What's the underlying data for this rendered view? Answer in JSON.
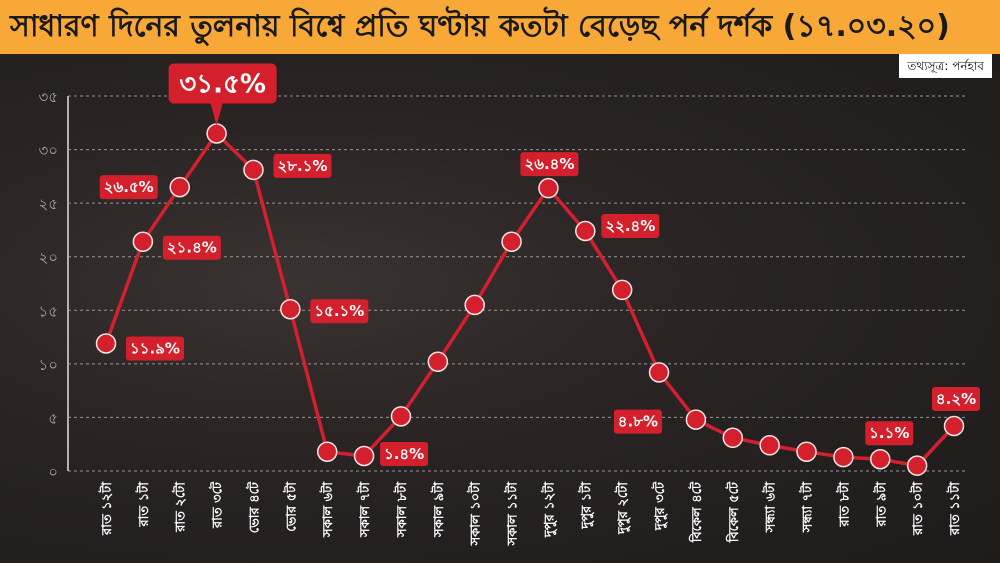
{
  "header": {
    "title": "সাধারণ দিনের তুলনায় বিশ্বে প্রতি ঘণ্টায় কতটা বেড়েছ পর্ন দর্শক (১৭.০৩.২০)",
    "source": "তথ্যসূত্র: পর্নহাব"
  },
  "colors": {
    "title_bg": "#f7a836",
    "line": "#d4202c",
    "label_bg": "#d4202c",
    "background": "#231e1e",
    "grid": "#9a9594"
  },
  "chart_data": {
    "type": "line",
    "title": "সাধারণ দিনের তুলনায় বিশ্বে প্রতি ঘণ্টায় কতটা বেড়েছ পর্ন দর্শক (১৭.০৩.২০)",
    "xlabel": "",
    "ylabel": "",
    "ylim": [
      0,
      35
    ],
    "yticks": [
      0,
      5,
      10,
      15,
      20,
      25,
      30,
      35
    ],
    "ytick_labels": [
      "০",
      "৫",
      "১০",
      "১৫",
      "২০",
      "২৫",
      "৩০",
      "৩৫"
    ],
    "grid": true,
    "legend": null,
    "categories": [
      "রাত ১২টা",
      "রাত ১টা",
      "রাত ২টো",
      "রাত ৩টে",
      "ভোর ৪টে",
      "ভোর ৫টা",
      "সকাল ৬টা",
      "সকাল ৭টা",
      "সকাল ৮টা",
      "সকাল ৯টা",
      "সকাল ১০টা",
      "সকাল ১১টা",
      "দুপুর ১২টা",
      "দুপুর ১টা",
      "দুপুর ২টো",
      "দুপুর ৩টে",
      "বিকেল ৪টে",
      "বিকেল ৫টে",
      "সন্ধ্যা ৬টা",
      "সন্ধ্যা ৭টা",
      "রাত ৮টা",
      "রাত ৯টা",
      "রাত ১০টা",
      "রাত ১১টা"
    ],
    "values": [
      11.9,
      21.4,
      26.5,
      31.5,
      28.1,
      15.1,
      1.8,
      1.4,
      5.1,
      10.2,
      15.5,
      21.4,
      26.4,
      22.4,
      16.9,
      9.2,
      4.8,
      3.1,
      2.4,
      1.8,
      1.3,
      1.1,
      0.5,
      4.2
    ],
    "annotations": [
      {
        "index": 0,
        "text": "১১.৯%"
      },
      {
        "index": 1,
        "text": "২১.৪%"
      },
      {
        "index": 2,
        "text": "২৬.৫%"
      },
      {
        "index": 3,
        "text": "৩১.৫%",
        "highlight": true
      },
      {
        "index": 4,
        "text": "২৮.১%"
      },
      {
        "index": 5,
        "text": "১৫.১%"
      },
      {
        "index": 7,
        "text": "১.৪%"
      },
      {
        "index": 12,
        "text": "২৬.৪%"
      },
      {
        "index": 13,
        "text": "২২.৪%"
      },
      {
        "index": 16,
        "text": "৪.৮%"
      },
      {
        "index": 21,
        "text": "১.১%"
      },
      {
        "index": 23,
        "text": "৪.২%"
      }
    ]
  }
}
